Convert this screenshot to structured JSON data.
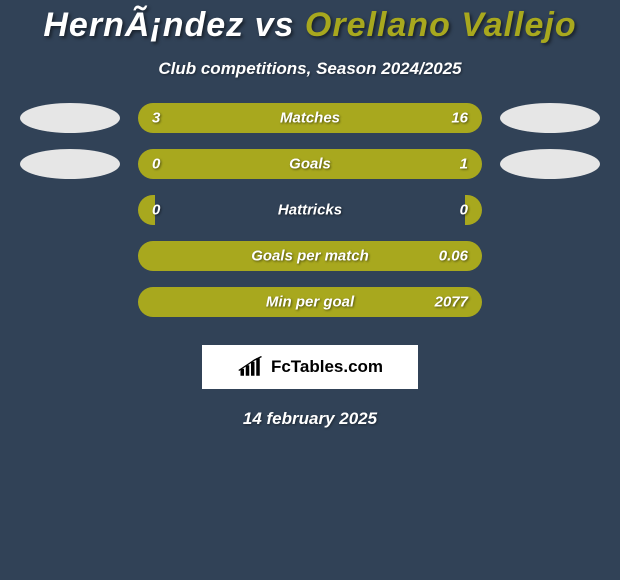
{
  "background_color": "#314257",
  "bar_color": "#a8a81e",
  "title": {
    "player_left": "HernÃ¡ndez",
    "vs": "vs",
    "player_right": "Orellano Vallejo"
  },
  "subtitle": "Club competitions, Season 2024/2025",
  "stats": [
    {
      "label": "Matches",
      "left_val": "3",
      "right_val": "16",
      "left_pct": 18,
      "right_pct": 82,
      "show_ellipses": true
    },
    {
      "label": "Goals",
      "left_val": "0",
      "right_val": "1",
      "left_pct": 5,
      "right_pct": 95,
      "show_ellipses": true
    },
    {
      "label": "Hattricks",
      "left_val": "0",
      "right_val": "0",
      "left_pct": 5,
      "right_pct": 5,
      "show_ellipses": false
    },
    {
      "label": "Goals per match",
      "left_val": "",
      "right_val": "0.06",
      "left_pct": 0,
      "right_pct": 100,
      "show_ellipses": false
    },
    {
      "label": "Min per goal",
      "left_val": "",
      "right_val": "2077",
      "left_pct": 0,
      "right_pct": 100,
      "show_ellipses": false
    }
  ],
  "logo": {
    "text": "FcTables.com"
  },
  "date": "14 february 2025"
}
